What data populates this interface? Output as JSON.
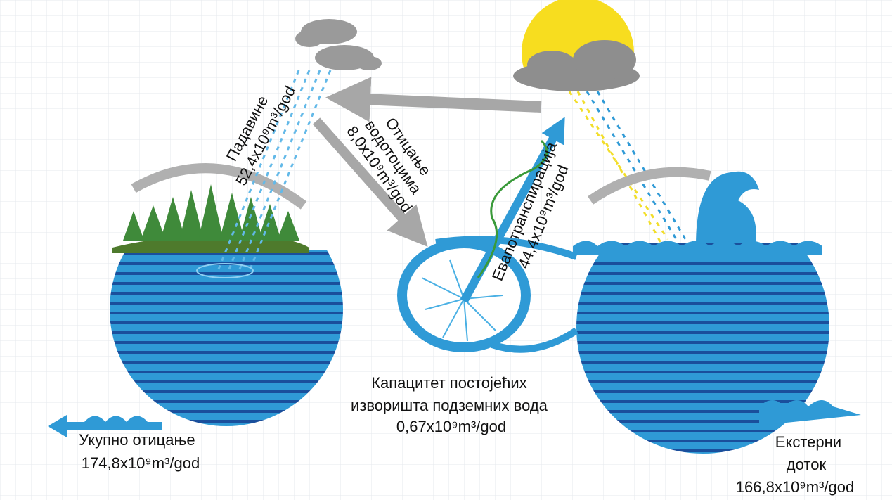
{
  "labels": {
    "precipitation": {
      "lines": [
        "Падавине",
        "52,4x10⁹m³/god"
      ]
    },
    "river_runoff": {
      "lines": [
        "Отицање",
        "водотоцима",
        "8,0x10⁹m³/god"
      ]
    },
    "evapotranspiration": {
      "lines": [
        "Евапотранспирација",
        "44,4x10⁹m³/god"
      ]
    },
    "groundwater": {
      "lines": [
        "Капацитет постојећих",
        "изворишта  подземних вода",
        "0,67x10⁹m³/god"
      ]
    },
    "total_runoff": {
      "lines": [
        "Укупно отицање",
        "174,8x10⁹m³/god"
      ]
    },
    "external_inflow": {
      "lines": [
        "Екстерни",
        "доток",
        "166,8x10⁹m³/god"
      ]
    }
  }
}
